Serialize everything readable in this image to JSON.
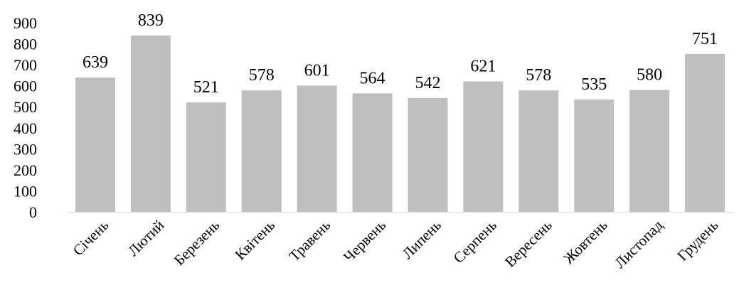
{
  "chart_data": {
    "type": "bar",
    "categories": [
      "Січень",
      "Лютий",
      "Березень",
      "Квітень",
      "Травень",
      "Червень",
      "Липень",
      "Серпень",
      "Вересень",
      "Жовтень",
      "Листопад",
      "Грудень"
    ],
    "values": [
      639,
      839,
      521,
      578,
      601,
      564,
      542,
      621,
      578,
      535,
      580,
      751
    ],
    "yticks": [
      0,
      100,
      200,
      300,
      400,
      500,
      600,
      700,
      800,
      900
    ],
    "ylim": [
      0,
      900
    ],
    "grid": false,
    "legend": "none",
    "bar_color": "#bfbfbf",
    "axis_color": "#d9d9d9"
  }
}
